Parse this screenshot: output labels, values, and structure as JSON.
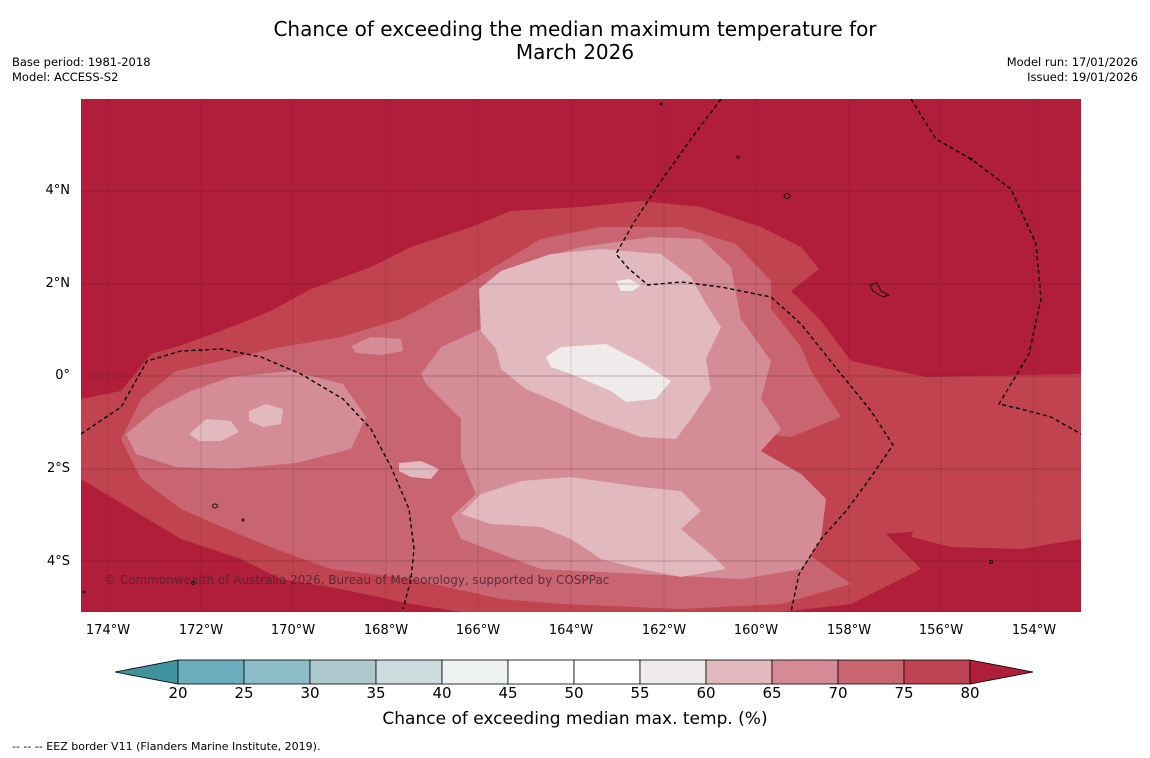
{
  "title_line1": "Chance of exceeding the median maximum temperature for",
  "title_line2": "March 2026",
  "base_period": "Base period: 1981-2018",
  "model": "Model: ACCESS-S2",
  "model_run": "Model run: 17/01/2026",
  "issued": "Issued: 19/01/2026",
  "lat_labels": [
    "4°N",
    "2°N",
    "0°",
    "2°S",
    "4°S"
  ],
  "lon_labels": [
    "174°W",
    "172°W",
    "170°W",
    "168°W",
    "166°W",
    "164°W",
    "162°W",
    "160°W",
    "158°W",
    "156°W",
    "154°W"
  ],
  "copyright": "© Commonwealth of Australia 2026, Bureau of Meteorology, supported by COSPPac",
  "colorbar": {
    "ticks": [
      "20",
      "25",
      "30",
      "35",
      "40",
      "45",
      "50",
      "55",
      "60",
      "65",
      "70",
      "75",
      "80"
    ],
    "colors": [
      "#41929f",
      "#6aadbc",
      "#8cbcc6",
      "#adc9ce",
      "#cfdcdf",
      "#eef2f3",
      "#ffffff",
      "#ffffff",
      "#eeebea",
      "#e1b9be",
      "#d48b96",
      "#c9656f",
      "#bf4453",
      "#b11e39"
    ],
    "label": "Chance of exceeding median max. temp. (%)"
  },
  "footnote": "--  --  -- EEZ border V11 (Flanders Marine Institute, 2019).",
  "legend_colors": {
    "c80": "#b11e39",
    "c75": "#c0434f",
    "c70": "#c96570",
    "c65": "#d48c96",
    "c60": "#e1b9be",
    "c55": "#eeebea"
  }
}
